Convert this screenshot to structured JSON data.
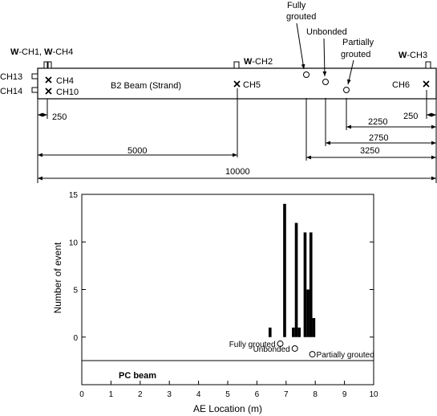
{
  "beam": {
    "name": "B2 Beam (Strand)",
    "sensors_top": {
      "left": {
        "prefix": "W",
        "mid": "-CH1, ",
        "prefix2": "W",
        "rest": "-CH4"
      },
      "mid": {
        "prefix": "W",
        "rest": "-CH2"
      },
      "right": {
        "prefix": "W",
        "rest": "-CH3"
      }
    },
    "side_labels": [
      "CH13",
      "CH14"
    ],
    "inner_labels": [
      "CH4",
      "CH10",
      "CH5",
      "CH6"
    ],
    "tendon_labels": {
      "fully": [
        "Fully",
        "grouted"
      ],
      "unbonded": "Unbonded",
      "partially": [
        "Partially",
        "grouted"
      ]
    },
    "dimensions": [
      "250",
      "2250",
      "250",
      "2750",
      "5000",
      "3250",
      "10000"
    ]
  },
  "chart_data": {
    "type": "bar",
    "xlabel": "AE Location (m)",
    "ylabel": "Number of event",
    "xlim": [
      0,
      10
    ],
    "ylim": [
      -5,
      15
    ],
    "xticks": [
      0,
      1,
      2,
      3,
      4,
      5,
      6,
      7,
      8,
      9,
      10
    ],
    "yticks": [
      0,
      5,
      10,
      15
    ],
    "ytick_labels": [
      "0",
      "5",
      "10",
      "15"
    ],
    "bar_width": 0.1,
    "bars": [
      {
        "x": 6.45,
        "value": 1
      },
      {
        "x": 6.95,
        "value": 14
      },
      {
        "x": 7.25,
        "value": 1
      },
      {
        "x": 7.35,
        "value": 12
      },
      {
        "x": 7.45,
        "value": 1
      },
      {
        "x": 7.65,
        "value": 11
      },
      {
        "x": 7.75,
        "value": 5
      },
      {
        "x": 7.85,
        "value": 11
      },
      {
        "x": 7.95,
        "value": 2
      }
    ],
    "annotation": "PC beam",
    "markers": [
      {
        "label": "Fully grouted",
        "x": 6.8,
        "y": -0.7
      },
      {
        "label": "Unbonded",
        "x": 7.3,
        "y": -1.2
      },
      {
        "label": "Partially grouted",
        "x": 7.9,
        "y": -1.8
      }
    ]
  }
}
